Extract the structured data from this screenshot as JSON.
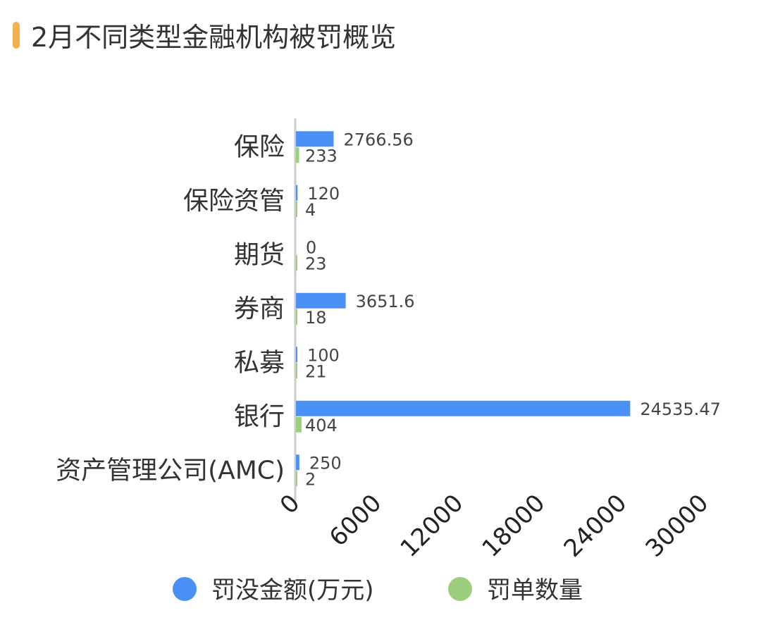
{
  "title": "2月不同类型金融机构被罚概览",
  "colors": {
    "accent": "#f2b14e",
    "series1": "#4a90f5",
    "series2": "#9cce7d",
    "axis": "#cccccc",
    "text": "#333333"
  },
  "chart_data": {
    "type": "bar",
    "orientation": "horizontal",
    "title": "2月不同类型金融机构被罚概览",
    "categories": [
      "保险",
      "保险资管",
      "期货",
      "券商",
      "私募",
      "银行",
      "资产管理公司(AMC)"
    ],
    "series": [
      {
        "name": "罚没金额(万元)",
        "values": [
          2766.56,
          120,
          0,
          3651.6,
          100,
          24535.47,
          250
        ],
        "labels": [
          "2766.56",
          "120",
          "0",
          "3651.6",
          "100",
          "24535.47",
          "250"
        ]
      },
      {
        "name": "罚单数量",
        "values": [
          233,
          4,
          23,
          18,
          21,
          404,
          2
        ],
        "labels": [
          "233",
          "4",
          "23",
          "18",
          "21",
          "404",
          "2"
        ]
      }
    ],
    "xlim": [
      0,
      30000
    ],
    "xticks": [
      "0",
      "6000",
      "12000",
      "18000",
      "24000",
      "30000"
    ],
    "grid": false,
    "legend": "bottom"
  }
}
